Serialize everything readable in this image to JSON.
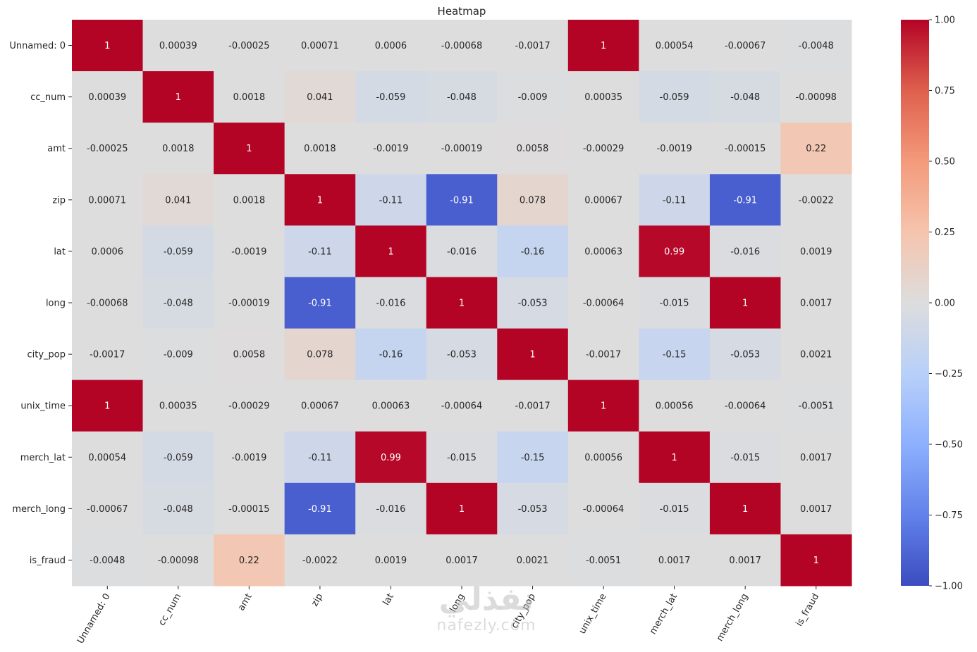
{
  "chart_data": {
    "type": "heatmap",
    "title": "Heatmap",
    "xlabel": "",
    "ylabel": "",
    "colormap": "coolwarm",
    "vmin": -1.0,
    "vmax": 1.0,
    "annotate": true,
    "x_labels": [
      "Unnamed: 0",
      "cc_num",
      "amt",
      "zip",
      "lat",
      "long",
      "city_pop",
      "unix_time",
      "merch_lat",
      "merch_long",
      "is_fraud"
    ],
    "y_labels": [
      "Unnamed: 0",
      "cc_num",
      "amt",
      "zip",
      "lat",
      "long",
      "city_pop",
      "unix_time",
      "merch_lat",
      "merch_long",
      "is_fraud"
    ],
    "values": [
      [
        1,
        0.00039,
        -0.00025,
        0.00071,
        0.0006,
        -0.00068,
        -0.0017,
        1,
        0.00054,
        -0.00067,
        -0.0048
      ],
      [
        0.00039,
        1,
        0.0018,
        0.041,
        -0.059,
        -0.048,
        -0.009,
        0.00035,
        -0.059,
        -0.048,
        -0.00098
      ],
      [
        -0.00025,
        0.0018,
        1,
        0.0018,
        -0.0019,
        -0.00019,
        0.0058,
        -0.00029,
        -0.0019,
        -0.00015,
        0.22
      ],
      [
        0.00071,
        0.041,
        0.0018,
        1,
        -0.11,
        -0.91,
        0.078,
        0.00067,
        -0.11,
        -0.91,
        -0.0022
      ],
      [
        0.0006,
        -0.059,
        -0.0019,
        -0.11,
        1,
        -0.016,
        -0.16,
        0.00063,
        0.99,
        -0.016,
        0.0019
      ],
      [
        -0.00068,
        -0.048,
        -0.00019,
        -0.91,
        -0.016,
        1,
        -0.053,
        -0.00064,
        -0.015,
        1,
        0.0017
      ],
      [
        -0.0017,
        -0.009,
        0.0058,
        0.078,
        -0.16,
        -0.053,
        1,
        -0.0017,
        -0.15,
        -0.053,
        0.0021
      ],
      [
        1,
        0.00035,
        -0.00029,
        0.00067,
        0.00063,
        -0.00064,
        -0.0017,
        1,
        0.00056,
        -0.00064,
        -0.0051
      ],
      [
        0.00054,
        -0.059,
        -0.0019,
        -0.11,
        0.99,
        -0.015,
        -0.15,
        0.00056,
        1,
        -0.015,
        0.0017
      ],
      [
        -0.00067,
        -0.048,
        -0.00015,
        -0.91,
        -0.016,
        1,
        -0.053,
        -0.00064,
        -0.015,
        1,
        0.0017
      ],
      [
        -0.0048,
        -0.00098,
        0.22,
        -0.0022,
        0.0019,
        0.0017,
        0.0021,
        -0.0051,
        0.0017,
        0.0017,
        1
      ]
    ],
    "colorbar": {
      "ticks": [
        1.0,
        0.75,
        0.5,
        0.25,
        0.0,
        -0.25,
        -0.5,
        -0.75,
        -1.0
      ],
      "tick_labels": [
        "1.00",
        "0.75",
        "0.50",
        "0.25",
        "0.00",
        "−0.25",
        "−0.50",
        "−0.75",
        "−1.00"
      ],
      "placement": "right"
    },
    "grid": false
  },
  "watermark": {
    "arabic_text": "نفذلي",
    "latin_text": "nafezly.com"
  }
}
